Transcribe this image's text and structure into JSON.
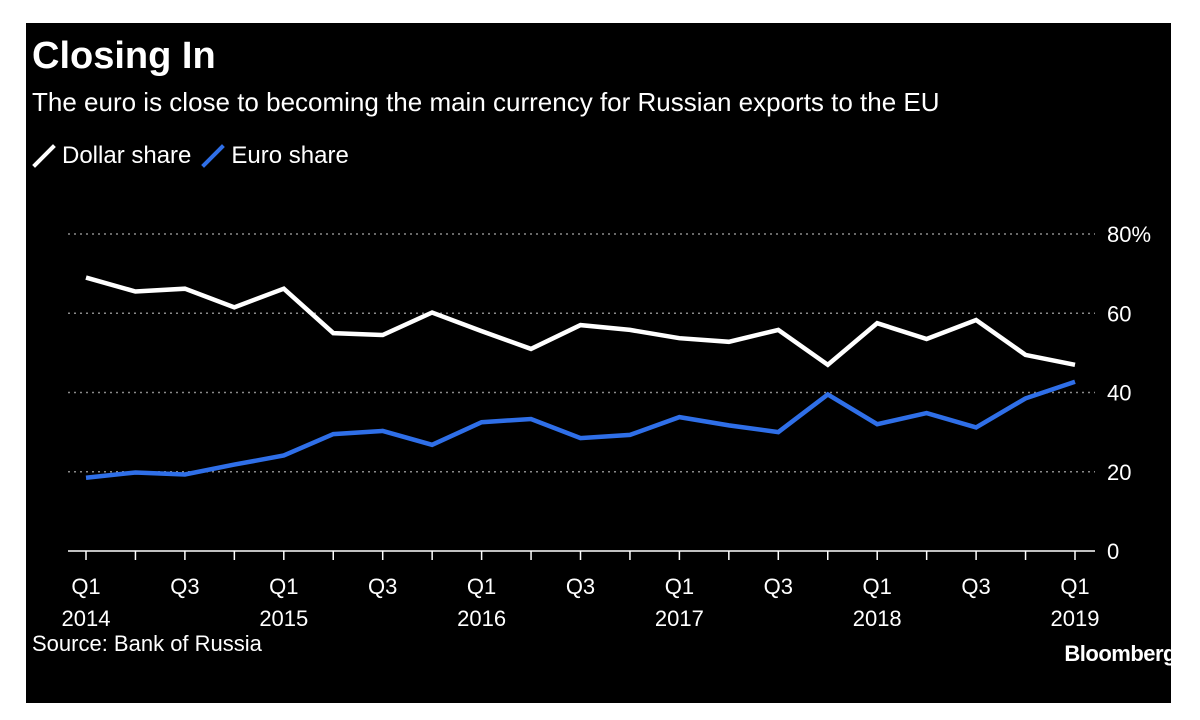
{
  "colors": {
    "background": "#000000",
    "dollar": "#ffffff",
    "euro": "#2f6fe8",
    "grid": "#8a8a8a",
    "text": "#ffffff"
  },
  "chart_data": {
    "type": "line",
    "title": "Closing In",
    "subtitle": "The euro is close to becoming the main currency for Russian exports to the EU",
    "xlabel": "",
    "ylabel": "",
    "x": [
      "Q1 2014",
      "Q2 2014",
      "Q3 2014",
      "Q4 2014",
      "Q1 2015",
      "Q2 2015",
      "Q3 2015",
      "Q4 2015",
      "Q1 2016",
      "Q2 2016",
      "Q3 2016",
      "Q4 2016",
      "Q1 2017",
      "Q2 2017",
      "Q3 2017",
      "Q4 2017",
      "Q1 2018",
      "Q2 2018",
      "Q3 2018",
      "Q4 2018",
      "Q1 2019"
    ],
    "x_tick_labels": [
      {
        "index": 0,
        "lines": [
          "Q1",
          "2014"
        ]
      },
      {
        "index": 2,
        "lines": [
          "Q3",
          ""
        ]
      },
      {
        "index": 4,
        "lines": [
          "Q1",
          "2015"
        ]
      },
      {
        "index": 6,
        "lines": [
          "Q3",
          ""
        ]
      },
      {
        "index": 8,
        "lines": [
          "Q1",
          "2016"
        ]
      },
      {
        "index": 10,
        "lines": [
          "Q3",
          ""
        ]
      },
      {
        "index": 12,
        "lines": [
          "Q1",
          "2017"
        ]
      },
      {
        "index": 14,
        "lines": [
          "Q3",
          ""
        ]
      },
      {
        "index": 16,
        "lines": [
          "Q1",
          "2018"
        ]
      },
      {
        "index": 18,
        "lines": [
          "Q3",
          ""
        ]
      },
      {
        "index": 20,
        "lines": [
          "Q1",
          "2019"
        ]
      }
    ],
    "ylim": [
      0,
      80
    ],
    "y_ticks": [
      0,
      20,
      40,
      60,
      80
    ],
    "y_tick_labels": [
      "0",
      "20",
      "40",
      "60",
      "80%"
    ],
    "y_axis_side": "right",
    "grid": "horizontal dotted",
    "legend_position": "top-left",
    "series": [
      {
        "name": "Dollar share",
        "color": "#ffffff",
        "values": [
          69,
          65.5,
          66.2,
          61.5,
          66.2,
          55,
          54.5,
          60.2,
          55.5,
          51,
          57,
          55.8,
          53.7,
          52.8,
          55.8,
          47,
          57.5,
          53.5,
          58.3,
          49.5,
          47
        ]
      },
      {
        "name": "Euro share",
        "color": "#2f6fe8",
        "values": [
          18.5,
          19.8,
          19.3,
          21.8,
          24.1,
          29.5,
          30.3,
          26.8,
          32.5,
          33.3,
          28.5,
          29.3,
          33.8,
          31.7,
          30,
          39.5,
          32,
          34.8,
          31.2,
          38.5,
          42.7
        ]
      }
    ]
  },
  "footer": {
    "source": "Source: Bank of Russia",
    "brand": "Bloomberg"
  }
}
